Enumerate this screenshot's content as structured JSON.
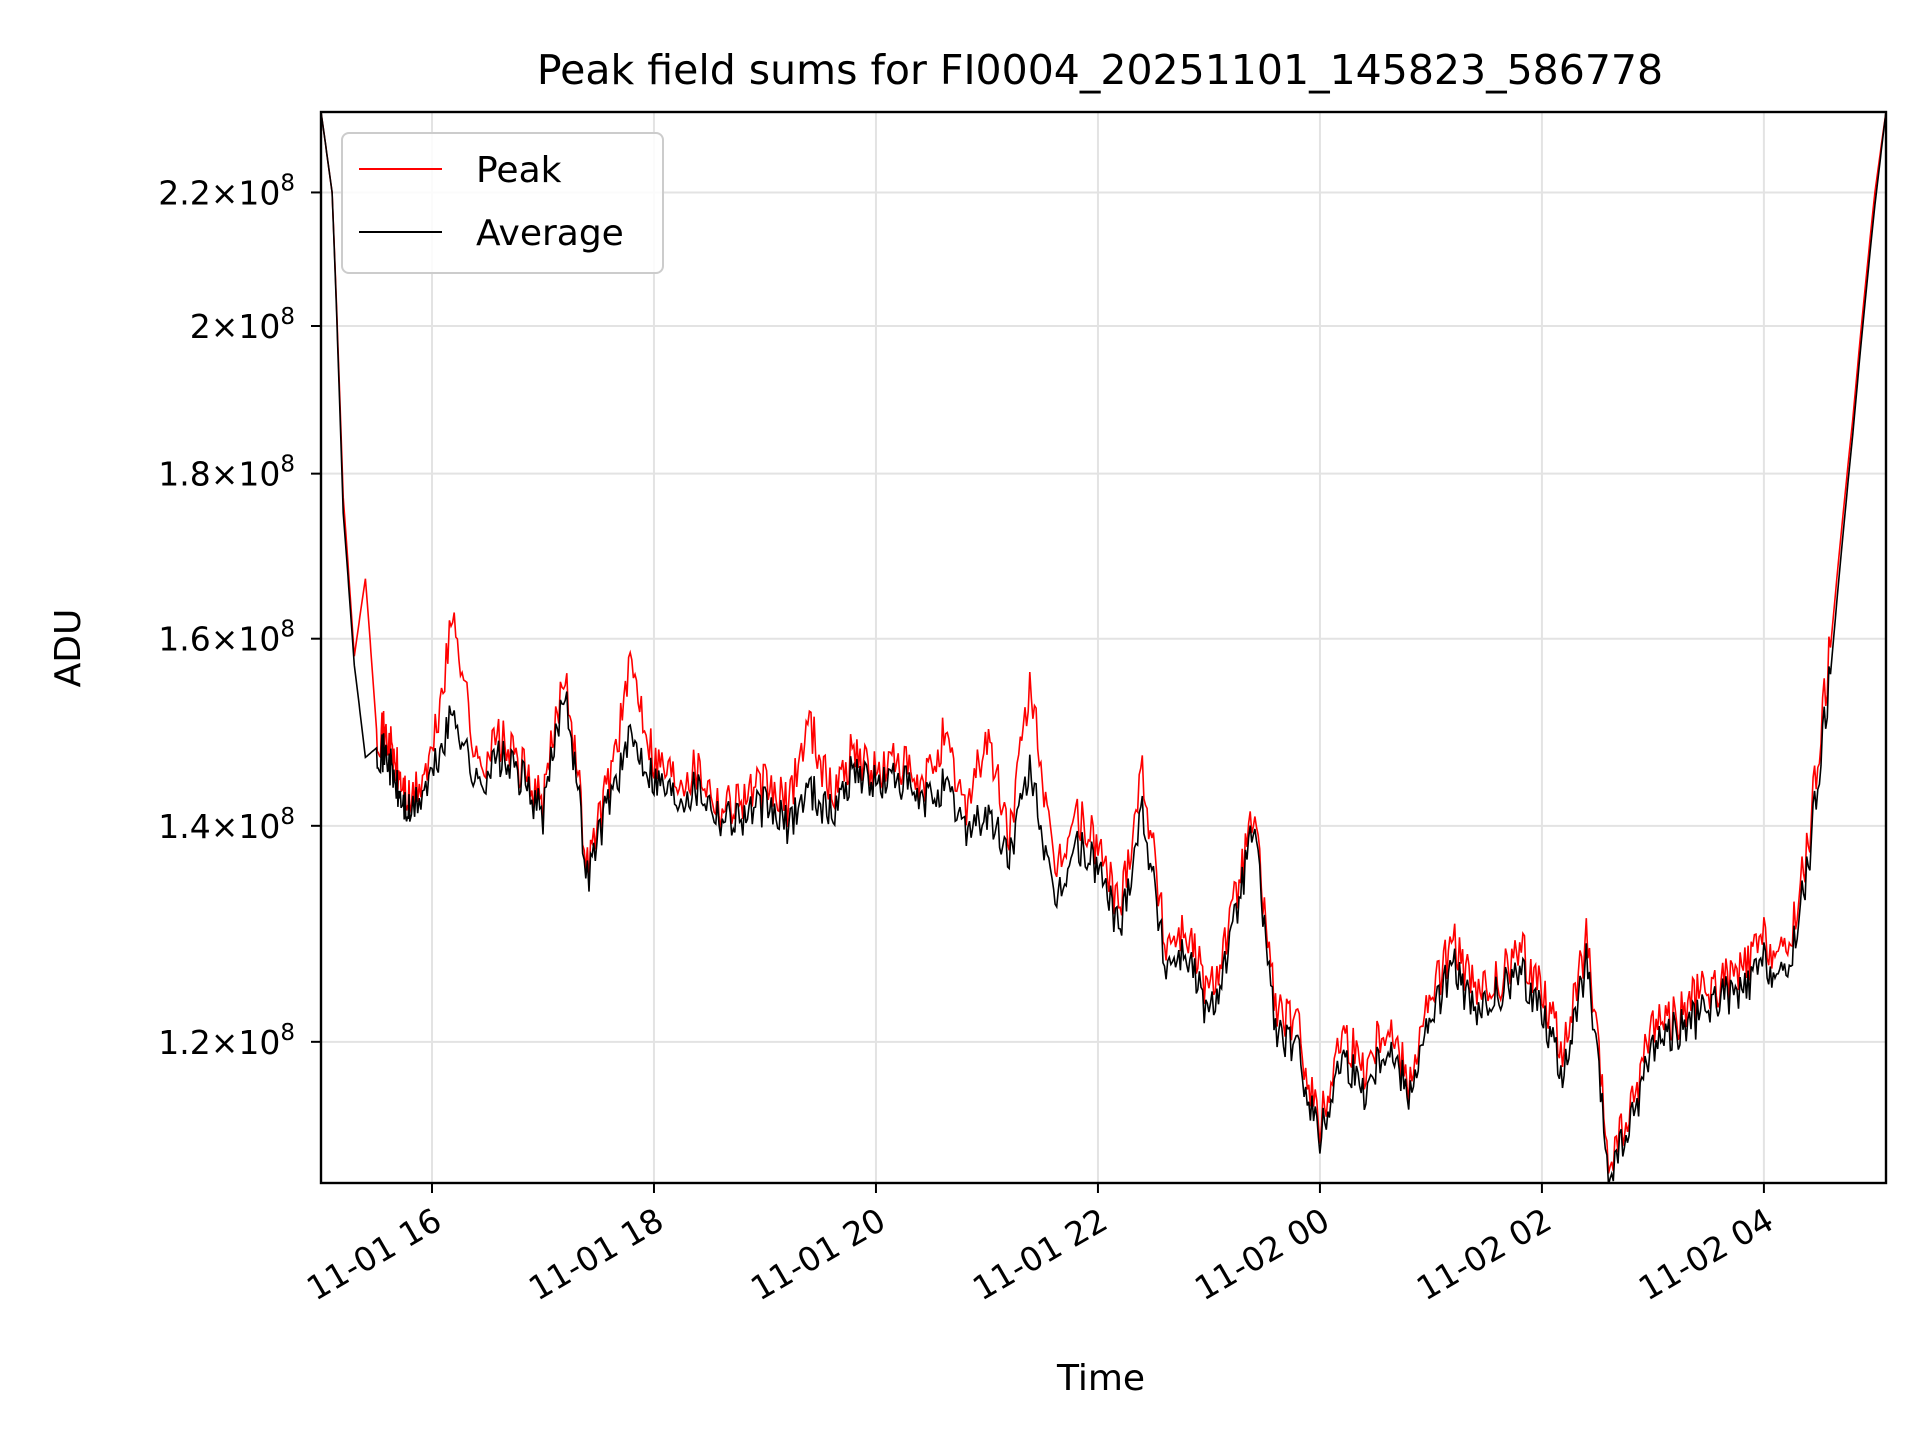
{
  "chart_data": {
    "type": "line",
    "title": "Peak field sums for FI0004_20251101_145823_586778",
    "xlabel": "Time",
    "ylabel": "ADU",
    "yscale": "log",
    "x_range_hours": [
      -1.0,
      13.1
    ],
    "ylim": [
      108500000.0,
      233000000.0
    ],
    "grid": true,
    "legend_position": "upper-left",
    "x_ticks": [
      {
        "hour": 0,
        "label": "11-01 16"
      },
      {
        "hour": 2,
        "label": "11-01 18"
      },
      {
        "hour": 4,
        "label": "11-01 20"
      },
      {
        "hour": 6,
        "label": "11-01 22"
      },
      {
        "hour": 8,
        "label": "11-02 00"
      },
      {
        "hour": 10,
        "label": "11-02 02"
      },
      {
        "hour": 12,
        "label": "11-02 04"
      }
    ],
    "y_ticks": [
      {
        "value": 120000000.0,
        "mantissa": "1.2",
        "exponent": "8"
      },
      {
        "value": 140000000.0,
        "mantissa": "1.4",
        "exponent": "8"
      },
      {
        "value": 160000000.0,
        "mantissa": "1.6",
        "exponent": "8"
      },
      {
        "value": 180000000.0,
        "mantissa": "1.8",
        "exponent": "8"
      },
      {
        "value": 200000000.0,
        "mantissa": "2",
        "exponent": "8"
      },
      {
        "value": 220000000.0,
        "mantissa": "2.2",
        "exponent": "8"
      }
    ],
    "series": [
      {
        "name": "Peak",
        "color": "#ff0000"
      },
      {
        "name": "Average",
        "color": "#000000"
      }
    ],
    "x_hours": [
      -1.0,
      -0.9,
      -0.8,
      -0.7,
      -0.6,
      -0.5,
      -0.4,
      -0.3,
      -0.2,
      0.0,
      0.2,
      0.4,
      0.6,
      0.8,
      1.0,
      1.2,
      1.4,
      1.6,
      1.8,
      2.0,
      2.2,
      2.4,
      2.6,
      2.8,
      3.0,
      3.2,
      3.4,
      3.6,
      3.8,
      4.0,
      4.2,
      4.4,
      4.6,
      4.8,
      5.0,
      5.2,
      5.4,
      5.6,
      5.8,
      6.0,
      6.2,
      6.4,
      6.6,
      6.8,
      7.0,
      7.2,
      7.4,
      7.6,
      7.8,
      8.0,
      8.2,
      8.4,
      8.6,
      8.8,
      9.0,
      9.2,
      9.4,
      9.6,
      9.8,
      10.0,
      10.2,
      10.4,
      10.6,
      10.8,
      11.0,
      11.2,
      11.4,
      11.6,
      11.8,
      12.0,
      12.2,
      12.4,
      12.6,
      12.8,
      13.0,
      13.1
    ],
    "average": [
      233000000.0,
      220000000.0,
      175000000.0,
      157000000.0,
      147000000.0,
      148000000.0,
      147000000.0,
      143000000.0,
      141000000.0,
      145000000.0,
      152000000.0,
      144000000.0,
      147000000.0,
      145000000.0,
      141000000.0,
      155000000.0,
      135000000.0,
      143000000.0,
      149000000.0,
      145000000.0,
      143000000.0,
      144000000.0,
      141000000.0,
      141000000.0,
      142000000.0,
      140000000.0,
      144000000.0,
      141000000.0,
      146000000.0,
      144000000.0,
      145000000.0,
      142000000.0,
      144000000.0,
      140000000.0,
      141000000.0,
      137000000.0,
      146000000.0,
      132000000.0,
      138000000.0,
      136000000.0,
      130000000.0,
      142000000.0,
      127000000.0,
      128000000.0,
      122000000.0,
      129000000.0,
      140000000.0,
      121000000.0,
      119000000.0,
      112000000.0,
      119000000.0,
      116000000.0,
      120000000.0,
      116000000.0,
      122000000.0,
      127000000.0,
      122000000.0,
      124000000.0,
      126000000.0,
      123000000.0,
      117000000.0,
      127000000.0,
      109000000.0,
      113000000.0,
      120000000.0,
      121000000.0,
      122000000.0,
      124000000.0,
      124000000.0,
      127000000.0,
      125000000.0,
      136000000.0,
      156000000.0,
      185000000.0,
      218000000.0,
      233000000.0
    ],
    "peak": [
      233000000.0,
      220000000.0,
      177000000.0,
      158000000.0,
      167000000.0,
      150000000.0,
      149000000.0,
      145000000.0,
      142000000.0,
      147000000.0,
      163000000.0,
      146000000.0,
      149000000.0,
      146000000.0,
      142000000.0,
      157000000.0,
      136000000.0,
      145000000.0,
      157000000.0,
      147000000.0,
      145000000.0,
      146000000.0,
      142000000.0,
      143000000.0,
      144000000.0,
      142000000.0,
      151000000.0,
      143000000.0,
      148000000.0,
      145000000.0,
      147000000.0,
      143000000.0,
      149000000.0,
      142000000.0,
      149000000.0,
      139000000.0,
      155000000.0,
      135000000.0,
      141000000.0,
      138000000.0,
      132000000.0,
      146000000.0,
      129000000.0,
      130000000.0,
      124000000.0,
      131000000.0,
      141000000.0,
      123000000.0,
      121000000.0,
      113000000.0,
      121000000.0,
      118000000.0,
      122000000.0,
      117000000.0,
      124000000.0,
      129000000.0,
      124000000.0,
      125000000.0,
      128000000.0,
      125000000.0,
      119000000.0,
      129000000.0,
      110000000.0,
      114000000.0,
      122000000.0,
      122000000.0,
      124000000.0,
      125000000.0,
      126000000.0,
      129000000.0,
      127000000.0,
      138000000.0,
      159000000.0,
      187000000.0,
      220000000.0,
      233000000.0
    ]
  }
}
